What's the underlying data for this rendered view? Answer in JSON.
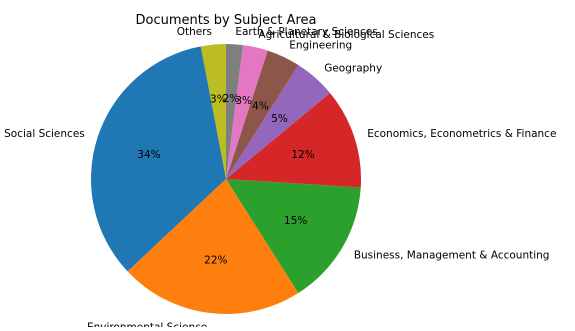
{
  "chart_data": {
    "type": "pie",
    "title": "Documents by Subject Area",
    "start_angle_deg": 90,
    "direction": "counterclockwise",
    "slices": [
      {
        "label": "Others",
        "percent": 3,
        "pct_label": "3%",
        "color": "#bcbd22"
      },
      {
        "label": "Social Sciences",
        "percent": 34,
        "pct_label": "34%",
        "color": "#1f77b4"
      },
      {
        "label": "Environmental Science",
        "percent": 22,
        "pct_label": "22%",
        "color": "#ff7f0e"
      },
      {
        "label": "Business, Management & Accounting",
        "percent": 15,
        "pct_label": "15%",
        "color": "#2ca02c"
      },
      {
        "label": "Economics, Econometrics & Finance",
        "percent": 12,
        "pct_label": "12%",
        "color": "#d62728"
      },
      {
        "label": "Geography",
        "percent": 5,
        "pct_label": "5%",
        "color": "#9467bd"
      },
      {
        "label": "Engineering",
        "percent": 4,
        "pct_label": "4%",
        "color": "#8c564b"
      },
      {
        "label": "Agricultural & Biological Sciences",
        "percent": 3,
        "pct_label": "3%",
        "color": "#e377c2"
      },
      {
        "label": "Earth & Planetary Sciences",
        "percent": 2,
        "pct_label": "2%",
        "color": "#7f7f7f"
      }
    ]
  }
}
